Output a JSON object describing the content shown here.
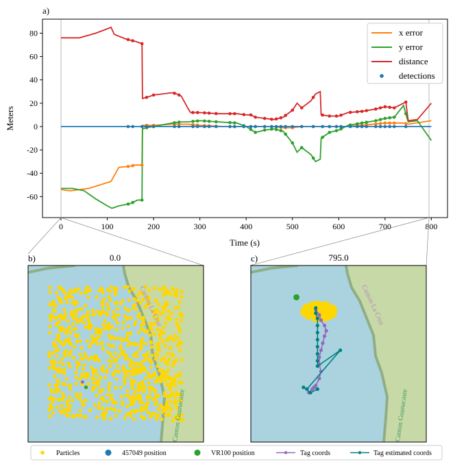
{
  "panel_a": {
    "label": "a)",
    "chart_data": {
      "type": "line",
      "xlabel": "Time (s)",
      "ylabel": "Meters",
      "xlim": [
        -40,
        835
      ],
      "ylim": [
        -78,
        92
      ],
      "xticks": [
        0,
        100,
        200,
        300,
        400,
        500,
        600,
        700,
        800
      ],
      "yticks": [
        -60,
        -40,
        -20,
        0,
        20,
        40,
        60,
        80
      ],
      "grid": false,
      "legend_position": "top-right",
      "series": [
        {
          "name": "x error",
          "color": "#ff7f0e",
          "kind": "line",
          "x": [
            0,
            20,
            60,
            108,
            125,
            150,
            160,
            175,
            176,
            185,
            200,
            240,
            275,
            300,
            350,
            400,
            420,
            440,
            460,
            480,
            500,
            520,
            540,
            560,
            580,
            600,
            620,
            650,
            700,
            740,
            750,
            800
          ],
          "y": [
            -54,
            -55,
            -53,
            -47,
            -35,
            -34,
            -33,
            -33,
            1,
            1,
            1,
            2,
            2,
            1,
            0,
            0,
            0,
            0,
            0,
            -1,
            -1,
            0,
            0,
            0,
            0,
            0,
            0,
            1,
            3,
            3,
            2,
            5
          ]
        },
        {
          "name": "y error",
          "color": "#2ca02c",
          "kind": "line",
          "x": [
            0,
            25,
            50,
            75,
            100,
            110,
            125,
            150,
            165,
            175,
            176,
            185,
            200,
            240,
            260,
            275,
            300,
            340,
            380,
            400,
            420,
            440,
            460,
            480,
            500,
            510,
            520,
            540,
            550,
            560,
            562,
            580,
            600,
            620,
            650,
            680,
            700,
            720,
            740,
            750,
            770,
            800
          ],
          "y": [
            -53,
            -53,
            -55,
            -62,
            -68,
            -70,
            -68,
            -66,
            -63,
            -63,
            -2,
            -1,
            0,
            3,
            4,
            4,
            5,
            4,
            3,
            0,
            -5,
            -3,
            -2,
            -4,
            -14,
            -22,
            -18,
            -24,
            -30,
            -28,
            -10,
            -5,
            -3,
            1,
            3,
            5,
            7,
            8,
            18,
            4,
            5,
            -12
          ]
        },
        {
          "name": "distance",
          "color": "#d62728",
          "kind": "line",
          "x": [
            0,
            20,
            40,
            75,
            95,
            108,
            115,
            140,
            160,
            175,
            176,
            185,
            200,
            240,
            250,
            260,
            275,
            280,
            300,
            340,
            380,
            400,
            410,
            420,
            440,
            460,
            480,
            500,
            510,
            520,
            540,
            550,
            560,
            562,
            580,
            600,
            620,
            650,
            680,
            700,
            720,
            740,
            745,
            750,
            770,
            800
          ],
          "y": [
            76,
            76,
            76,
            80,
            83,
            85,
            79,
            75,
            73,
            71,
            24,
            25,
            27,
            29,
            28,
            26,
            15,
            12,
            12,
            11,
            11,
            10,
            10,
            8,
            7,
            6,
            8,
            14,
            20,
            16,
            22,
            28,
            30,
            10,
            9,
            9,
            12,
            13,
            15,
            17,
            16,
            20,
            21,
            5,
            6,
            20
          ]
        },
        {
          "name": "detections",
          "color": "#1f77b4",
          "kind": "scatter",
          "x": [
            145,
            155,
            175,
            185,
            200,
            245,
            255,
            285,
            295,
            310,
            320,
            335,
            365,
            375,
            395,
            410,
            420,
            440,
            455,
            465,
            475,
            485,
            500,
            520,
            545,
            565,
            580,
            595,
            605,
            625,
            640,
            650,
            660,
            680,
            690,
            700,
            710,
            720,
            745
          ],
          "y": [
            0,
            0,
            0,
            0,
            0,
            0,
            0,
            0,
            0,
            0,
            0,
            0,
            0,
            0,
            0,
            0,
            0,
            0,
            0,
            0,
            0,
            0,
            0,
            0,
            0,
            0,
            0,
            0,
            0,
            0,
            0,
            0,
            0,
            0,
            0,
            0,
            0,
            0,
            0
          ]
        },
        {
          "name": "detection-baseline",
          "color": "#1f77b4",
          "kind": "line",
          "x": [
            0,
            800
          ],
          "y": [
            0,
            0
          ]
        }
      ]
    }
  },
  "panel_b": {
    "label": "b)",
    "title": "0.0",
    "map_labels": [
      "Canton La Cruz",
      "Canton Guanacaste"
    ],
    "vr100_position": [
      0.33,
      0.69
    ],
    "tag_position": [
      0.31,
      0.66
    ]
  },
  "panel_c": {
    "label": "c)",
    "title": "795.0",
    "map_labels": [
      "Canton La Cruz",
      "Canton Guanacaste"
    ],
    "vr100_position": [
      0.26,
      0.18
    ],
    "tag_coords_path": [
      [
        0.37,
        0.25
      ],
      [
        0.39,
        0.28
      ],
      [
        0.4,
        0.31
      ],
      [
        0.42,
        0.34
      ],
      [
        0.43,
        0.37
      ],
      [
        0.42,
        0.4
      ],
      [
        0.41,
        0.44
      ],
      [
        0.4,
        0.48
      ],
      [
        0.39,
        0.52
      ],
      [
        0.39,
        0.56
      ],
      [
        0.4,
        0.6
      ],
      [
        0.39,
        0.64
      ],
      [
        0.37,
        0.68
      ],
      [
        0.35,
        0.7
      ],
      [
        0.33,
        0.72
      ],
      [
        0.36,
        0.69
      ],
      [
        0.38,
        0.7
      ]
    ],
    "tag_estimated_path": [
      [
        0.37,
        0.24
      ],
      [
        0.37,
        0.27
      ],
      [
        0.38,
        0.3
      ],
      [
        0.38,
        0.34
      ],
      [
        0.38,
        0.38
      ],
      [
        0.38,
        0.42
      ],
      [
        0.38,
        0.46
      ],
      [
        0.38,
        0.5
      ],
      [
        0.38,
        0.54
      ],
      [
        0.38,
        0.57
      ],
      [
        0.51,
        0.48
      ],
      [
        0.32,
        0.7
      ],
      [
        0.3,
        0.69
      ],
      [
        0.34,
        0.72
      ],
      [
        0.38,
        0.7
      ]
    ]
  },
  "legend": {
    "particles": "Particles",
    "pos457049": "457049 position",
    "vr100": "VR100 position",
    "tag_coords": "Tag coords",
    "tag_estimated": "Tag estimated coords"
  },
  "colors": {
    "water": "#aad3df",
    "land": "#c8d9a8",
    "particles": "#ffd700",
    "pos457049": "#1f77b4",
    "vr100": "#2ca02c",
    "tag_coords": "#9467bd",
    "tag_estimated": "#008080"
  }
}
